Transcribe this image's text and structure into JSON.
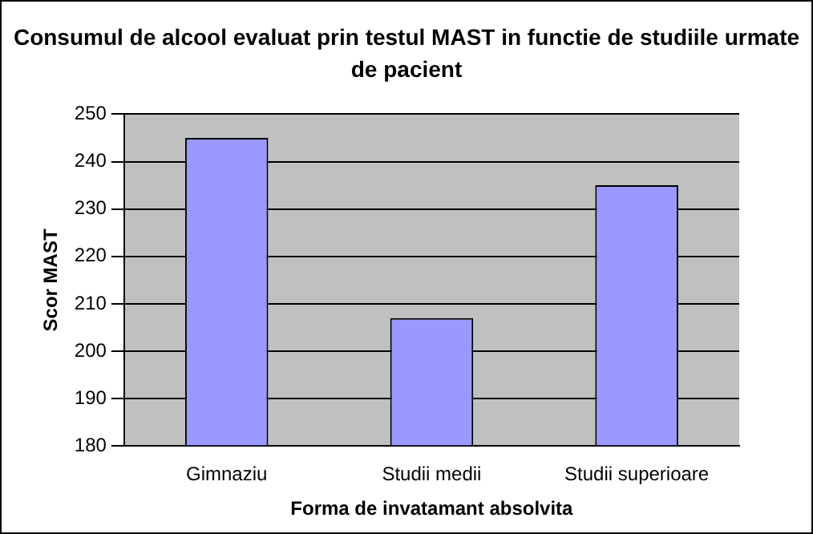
{
  "chart_data": {
    "type": "bar",
    "title": "Consumul de alcool evaluat prin testul MAST in functie de studiile urmate de pacient",
    "xlabel": "Forma de invatamant absolvita",
    "ylabel": "Scor MAST",
    "categories": [
      "Gimnaziu",
      "Studii medii",
      "Studii superioare"
    ],
    "values": [
      245,
      207,
      235
    ],
    "color": "#9999ff",
    "ylim": [
      180,
      250
    ],
    "yticks": [
      180,
      190,
      200,
      210,
      220,
      230,
      240,
      250
    ],
    "grid": "y"
  }
}
